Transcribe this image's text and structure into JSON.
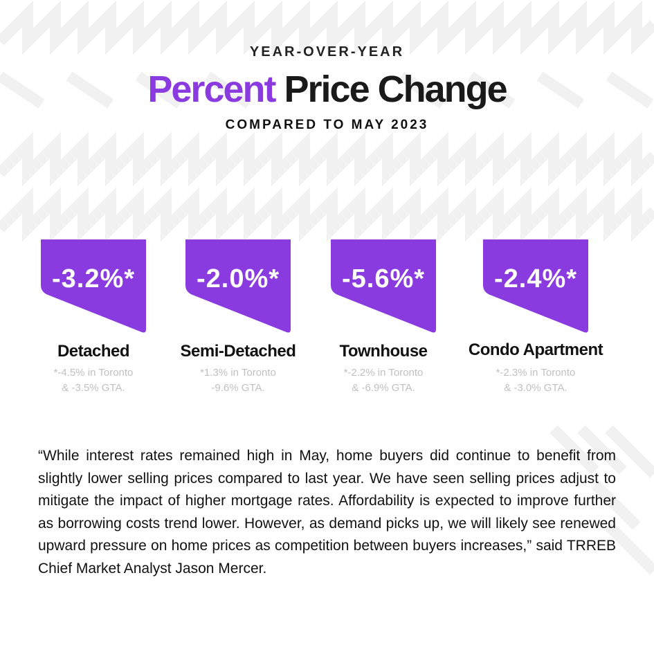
{
  "header": {
    "eyebrow": "YEAR-OVER-YEAR",
    "title_accent": "Percent",
    "title_rest": "Price Change",
    "subtitle": "COMPARED TO MAY 2023"
  },
  "cards": [
    {
      "value": "-3.2%*",
      "label": "Detached",
      "note_line1": "*-4.5% in Toronto",
      "note_line2": "& -3.5% GTA."
    },
    {
      "value": "-2.0%*",
      "label": "Semi-Detached",
      "note_line1": "*1.3% in Toronto",
      "note_line2": "-9.6% GTA."
    },
    {
      "value": "-5.6%*",
      "label": "Townhouse",
      "note_line1": "*-2.2% in Toronto",
      "note_line2": "& -6.9% GTA."
    },
    {
      "value": "-2.4%*",
      "label": "Condo Apartment",
      "note_line1": "*-2.3% in Toronto",
      "note_line2": "& -3.0% GTA."
    }
  ],
  "quote": "“While interest rates remained high in May, home buyers did continue to benefit from slightly lower selling prices compared to last year. We have seen selling prices adjust to mitigate the impact of higher mortgage rates. Affordability is expected to improve further as borrowing costs trend lower. However, as demand picks up, we will likely see renewed upward pressure on home prices as competition between buyers increases,” said TRREB Chief Market Analyst Jason Mercer.",
  "colors": {
    "accent": "#8a3be0",
    "card_fill": "#8a3be0",
    "note_text": "#c0c0c0",
    "pattern": "#f1f1f1"
  }
}
